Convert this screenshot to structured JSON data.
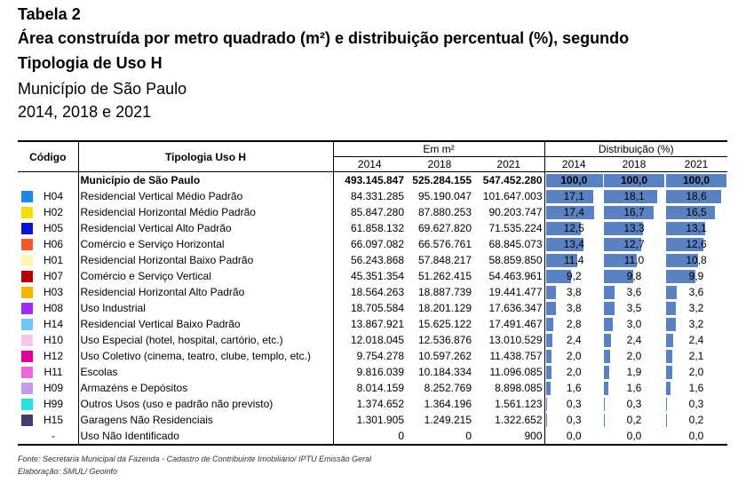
{
  "header": {
    "label": "Tabela 2",
    "title_line1": "Área construída por metro quadrado (m²) e distribuição percentual (%), segundo",
    "title_line2": "Tipologia de Uso H",
    "subtitle_line1": "Município de São Paulo",
    "subtitle_line2": "2014, 2018 e 2021"
  },
  "table": {
    "col_code": "Código",
    "col_type": "Tipologia Uso H",
    "group_area": "Em m²",
    "group_dist": "Distribuição (%)",
    "years": [
      "2014",
      "2018",
      "2021"
    ],
    "total": {
      "label": "Município de São Paulo",
      "area": [
        "493.145.847",
        "525.284.155",
        "547.452.280"
      ],
      "pct": [
        "100,0",
        "100,0",
        "100,0"
      ]
    },
    "rows": [
      {
        "color": "#1e88e5",
        "code": "H04",
        "name": "Residencial Vertical Médio Padrão",
        "area": [
          "84.331.285",
          "95.190.047",
          "101.647.003"
        ],
        "pct": [
          "17,1",
          "18,1",
          "18,6"
        ]
      },
      {
        "color": "#f4e000",
        "code": "H02",
        "name": "Residencial Horizontal Médio Padrão",
        "area": [
          "85.847.280",
          "87.880.253",
          "90.203.747"
        ],
        "pct": [
          "17,4",
          "16,7",
          "16,5"
        ]
      },
      {
        "color": "#0a14c8",
        "code": "H05",
        "name": "Residencial Vertical Alto Padrão",
        "area": [
          "61.858.132",
          "69.627.820",
          "71.535.224"
        ],
        "pct": [
          "12,5",
          "13,3",
          "13,1"
        ]
      },
      {
        "color": "#f45a28",
        "code": "H06",
        "name": "Comércio e Serviço Horizontal",
        "area": [
          "66.097.082",
          "66.576.761",
          "68.845.073"
        ],
        "pct": [
          "13,4",
          "12,7",
          "12,6"
        ]
      },
      {
        "color": "#fff7b8",
        "code": "H01",
        "name": "Residencial Horizontal Baixo Padrão",
        "area": [
          "56.243.868",
          "57.848.217",
          "58.859.850"
        ],
        "pct": [
          "11,4",
          "11,0",
          "10,8"
        ]
      },
      {
        "color": "#b40000",
        "code": "H07",
        "name": "Comércio e Serviço Vertical",
        "area": [
          "45.351.354",
          "51.262.415",
          "54.463.961"
        ],
        "pct": [
          "9,2",
          "9,8",
          "9,9"
        ]
      },
      {
        "color": "#f4b400",
        "code": "H03",
        "name": "Residencial Horizontal Alto Padrão",
        "area": [
          "18.564.263",
          "18.887.739",
          "19.441.477"
        ],
        "pct": [
          "3,8",
          "3,6",
          "3,6"
        ]
      },
      {
        "color": "#9b30f0",
        "code": "H08",
        "name": "Uso Industrial",
        "area": [
          "18.705.584",
          "18.201.129",
          "17.636.347"
        ],
        "pct": [
          "3,8",
          "3,5",
          "3,2"
        ]
      },
      {
        "color": "#6ec6f5",
        "code": "H14",
        "name": "Residencial Vertical Baixo Padrão",
        "area": [
          "13.867.921",
          "15.625.122",
          "17.491.467"
        ],
        "pct": [
          "2,8",
          "3,0",
          "3,2"
        ]
      },
      {
        "color": "#f7c6e8",
        "code": "H10",
        "name": "Uso Especial (hotel, hospital, cartório, etc.)",
        "area": [
          "12.018.045",
          "12.536.876",
          "13.010.529"
        ],
        "pct": [
          "2,4",
          "2,4",
          "2,4"
        ]
      },
      {
        "color": "#e0009a",
        "code": "H12",
        "name": "Uso Coletivo (cinema, teatro, clube, templo, etc.)",
        "area": [
          "9.754.278",
          "10.597.262",
          "11.438.757"
        ],
        "pct": [
          "2,0",
          "2,0",
          "2,1"
        ]
      },
      {
        "color": "#f064dc",
        "code": "H11",
        "name": "Escolas",
        "area": [
          "9.816.039",
          "10.184.334",
          "11.096.085"
        ],
        "pct": [
          "2,0",
          "1,9",
          "2,0"
        ]
      },
      {
        "color": "#c39cf0",
        "code": "H09",
        "name": "Armazéns e Depósitos",
        "area": [
          "8.014.159",
          "8.252.769",
          "8.898.085"
        ],
        "pct": [
          "1,6",
          "1,6",
          "1,6"
        ]
      },
      {
        "color": "#28e0e0",
        "code": "H99",
        "name": "Outros Usos (uso e padrão não previsto)",
        "area": [
          "1.374.652",
          "1.364.196",
          "1.561.123"
        ],
        "pct": [
          "0,3",
          "0,3",
          "0,3"
        ]
      },
      {
        "color": "#463a6e",
        "code": "H15",
        "name": "Garagens Não Residenciais",
        "area": [
          "1.301.905",
          "1.249.215",
          "1.322.652"
        ],
        "pct": [
          "0,3",
          "0,2",
          "0,2"
        ]
      },
      {
        "color": "",
        "code": "-",
        "name": "Uso Não Identificado",
        "area": [
          "0",
          "0",
          "900"
        ],
        "pct": [
          "0,0",
          "0,0",
          "0,0"
        ]
      }
    ]
  },
  "footer": {
    "source": "Fonte: Secretaria Municipal da Fazenda - Cadastro de Contribuinte Imobiliário/ IPTU Emissão Geral",
    "elaboration": "Elaboração: SMUL/ Geoinfo"
  }
}
